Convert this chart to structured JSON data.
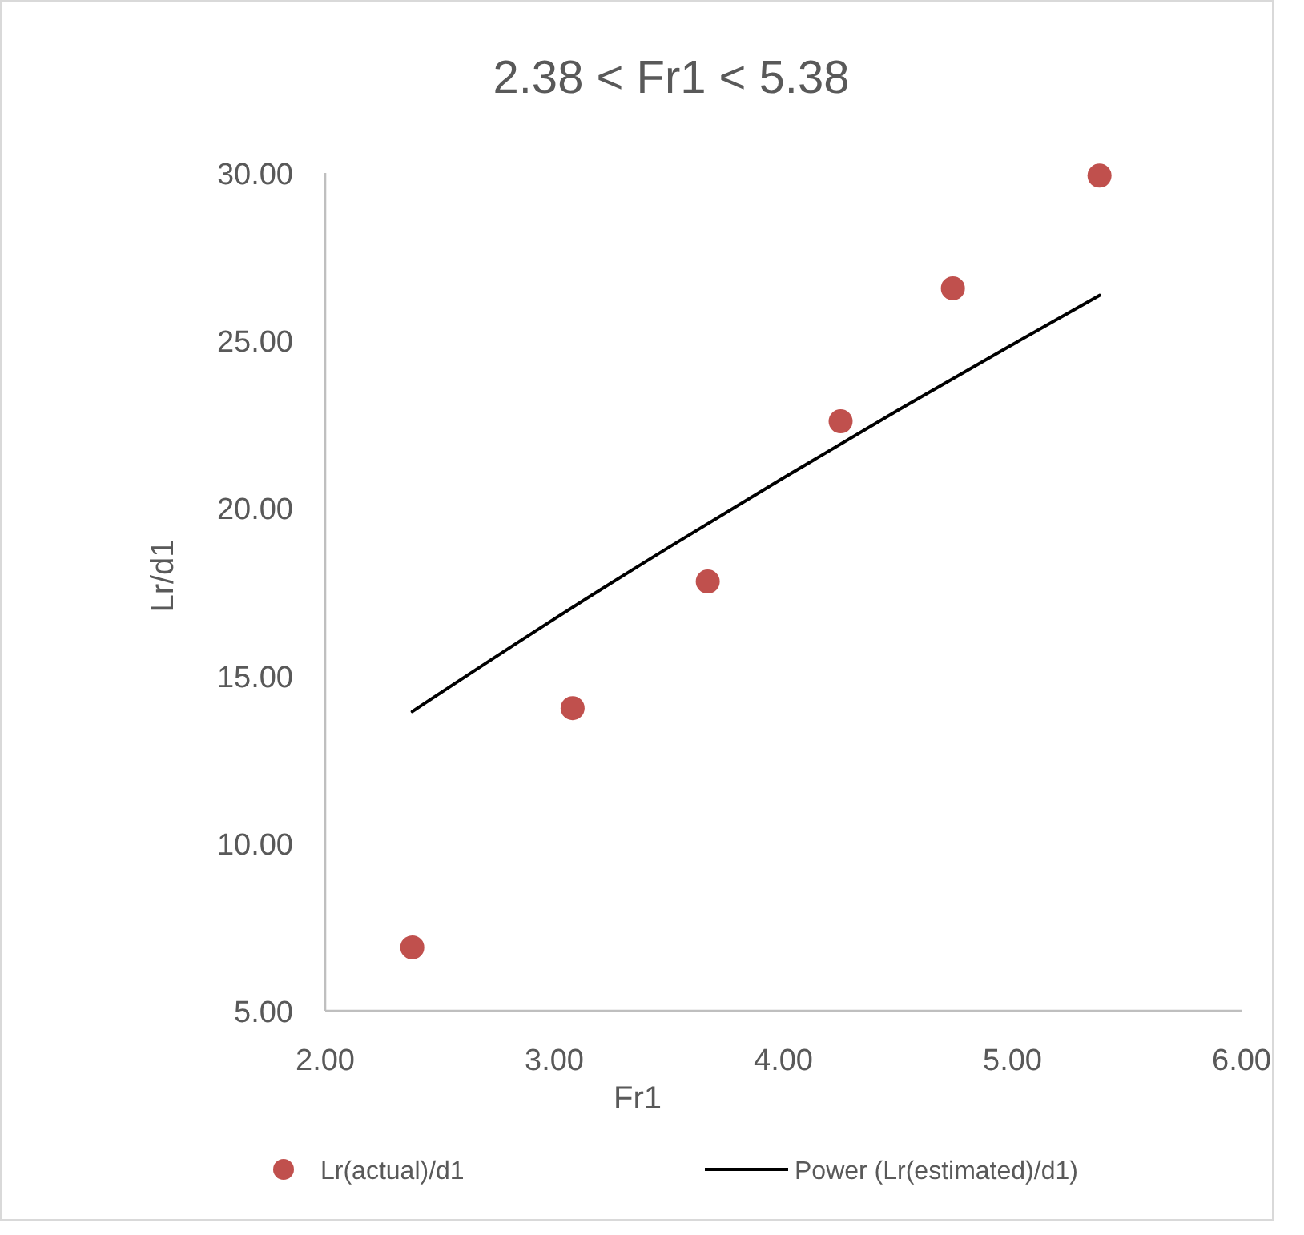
{
  "chart_data": {
    "type": "scatter",
    "title": "2.38 < Fr1 < 5.38",
    "xlabel": "Fr1",
    "ylabel": "Lr/d1",
    "xlim": [
      2,
      6
    ],
    "xticks": [
      {
        "value": 2,
        "label": "2.00"
      },
      {
        "value": 3,
        "label": "3.00"
      },
      {
        "value": 4,
        "label": "4.00"
      },
      {
        "value": 5,
        "label": "5.00"
      },
      {
        "value": 6,
        "label": "6.00"
      }
    ],
    "ylim": [
      5,
      30
    ],
    "yticks": [
      {
        "value": 5,
        "label": "5.00"
      },
      {
        "value": 10,
        "label": "10.00"
      },
      {
        "value": 15,
        "label": "15.00"
      },
      {
        "value": 20,
        "label": "20.00"
      },
      {
        "value": 25,
        "label": "25.00"
      },
      {
        "value": 30,
        "label": "30.00"
      }
    ],
    "grid": false,
    "legend": "bottom",
    "series": [
      {
        "name": "Lr(actual)/d1",
        "color": "#c0504d",
        "marker": "circle",
        "x": [
          2.38,
          3.08,
          3.67,
          4.25,
          4.74,
          5.38
        ],
        "values": [
          6.89,
          14.03,
          17.81,
          22.59,
          26.56,
          29.92
        ]
      },
      {
        "name": "Power (Lr(estimated)/d1)",
        "type": "line",
        "color": "#000000",
        "marker": "none",
        "line_style": "solid",
        "x": [
          2.38,
          3.0,
          3.5,
          4.0,
          4.5,
          5.0,
          5.38
        ],
        "values": [
          13.93,
          16.69,
          18.83,
          20.9,
          22.92,
          24.88,
          26.35
        ]
      }
    ]
  }
}
